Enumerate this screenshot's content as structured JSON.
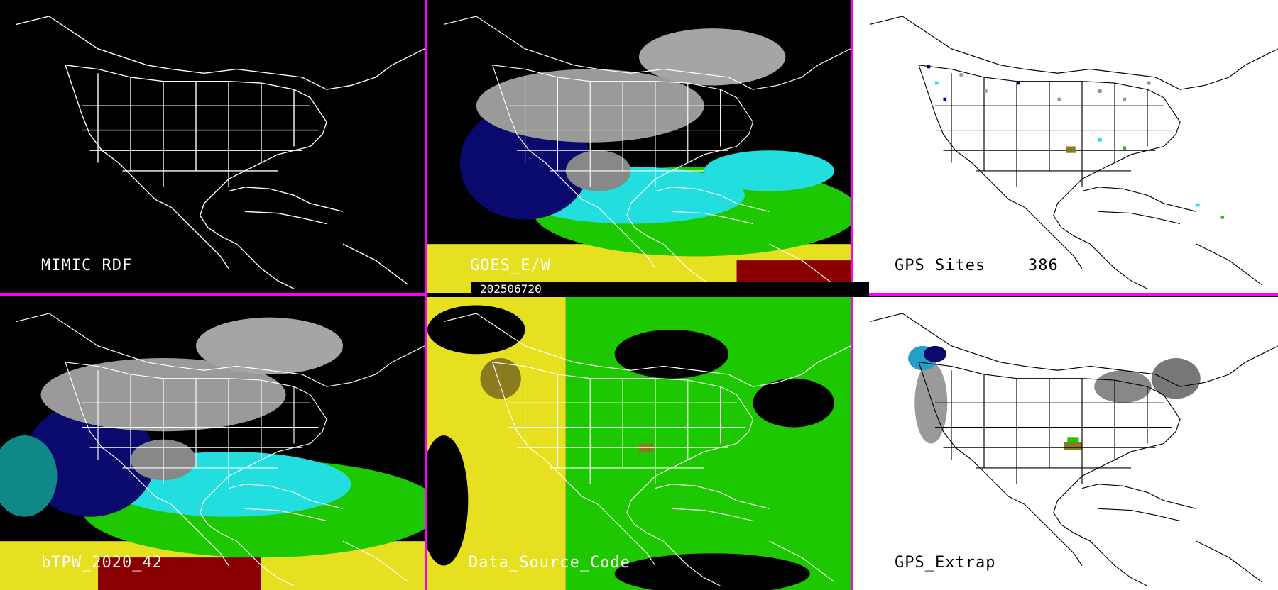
{
  "timestamp": "202506720",
  "panels": {
    "mimic_rdf": {
      "label": "MIMIC RDF"
    },
    "goes": {
      "label": "GOES_E/W"
    },
    "gps_sites": {
      "label": "GPS Sites",
      "count": "386"
    },
    "btpw": {
      "label": "bTPW_2020_42"
    },
    "data_source": {
      "label": "Data_Source_Code"
    },
    "gps_extrap": {
      "label": "GPS_Extrap"
    }
  },
  "colors": {
    "divider": "#ff00ff",
    "navy": "#0a0a6e",
    "cyan": "#22dede",
    "green": "#1ec800",
    "yellow": "#e6e020",
    "darkred": "#8a0000",
    "olive": "#8a7a20",
    "gray": "#9a9a9a"
  }
}
